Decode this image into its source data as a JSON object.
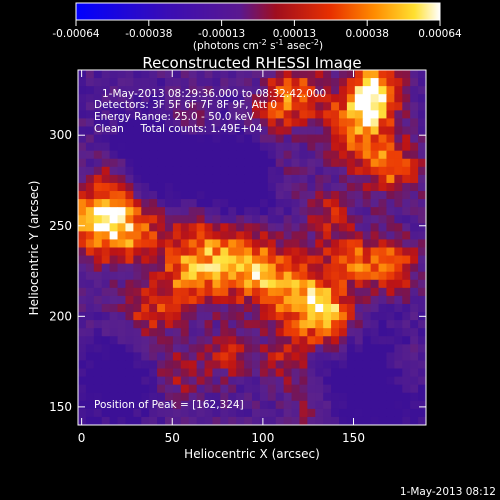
{
  "chart_data": {
    "type": "heatmap",
    "title": "Reconstructed RHESSI Image",
    "colorbar": {
      "ticks": [
        "-0.00064",
        "-0.00038",
        "-0.00013",
        "0.00013",
        "0.00038",
        "0.00064"
      ],
      "unit_prefix": "(photons cm",
      "unit_exp1": "-2",
      "unit_mid": " s",
      "unit_exp2": "-1",
      "unit_mid2": " asec",
      "unit_exp3": "-2",
      "unit_suffix": ")",
      "range": [
        -0.00064,
        0.00064
      ]
    },
    "info": {
      "line1": "1-May-2013 08:29:36.000 to 08:32:42.000",
      "line2": "Detectors: 3F 5F 6F 7F 8F 9F, Att 0",
      "line3": "Energy Range: 25.0 - 50.0 keV",
      "line4": "Clean     Total counts: 1.49E+04"
    },
    "peak_label": "Position of Peak = [162,324]",
    "peak": [
      162,
      324
    ],
    "xlabel": "Heliocentric X (arcsec)",
    "ylabel": "Heliocentric Y (arcsec)",
    "xlim": [
      -2,
      190
    ],
    "ylim": [
      140,
      336
    ],
    "xticks": [
      0,
      50,
      100,
      150
    ],
    "yticks": [
      150,
      200,
      250,
      300
    ],
    "grid": false,
    "colormap": "red-temperature (blue-purple-red-orange-yellow-white)"
  },
  "footer": {
    "timestamp": "1-May-2013 08:12"
  },
  "colors": {
    "background": "#000000",
    "text": "#ffffff"
  }
}
